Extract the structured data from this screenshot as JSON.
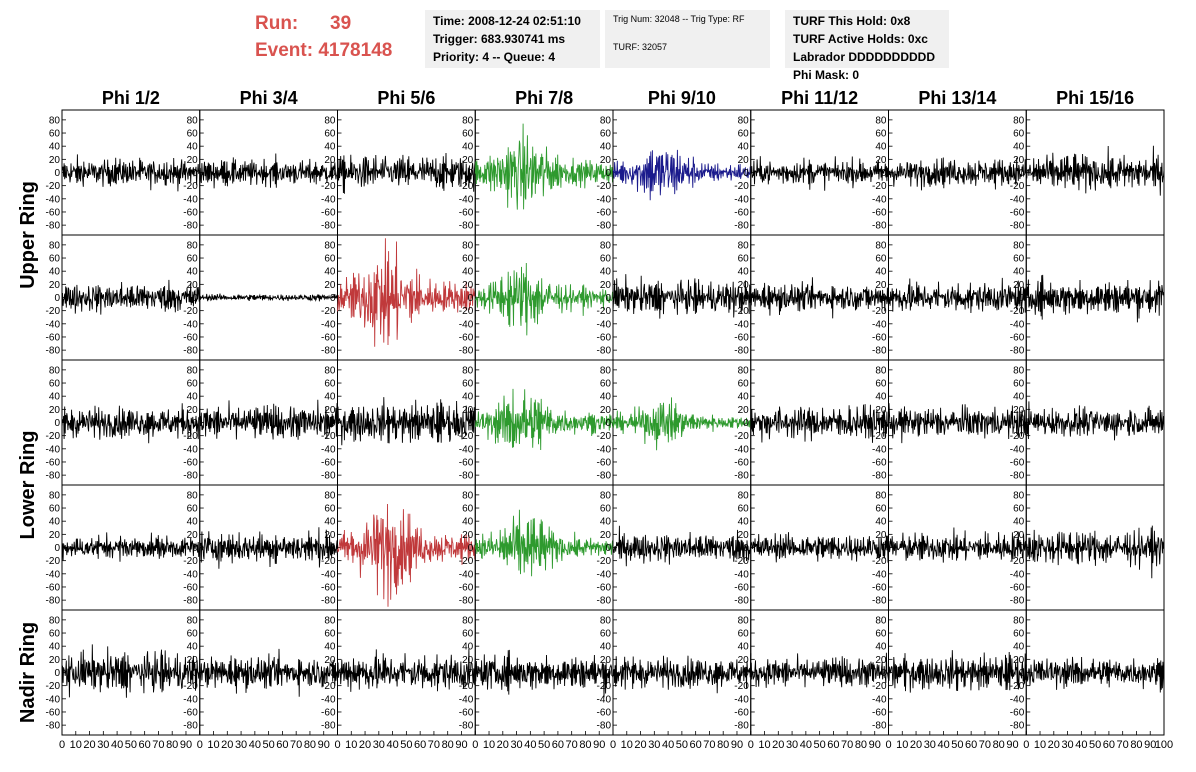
{
  "run": {
    "run_label": "Run:",
    "run_value": "39",
    "event_label": "Event:",
    "event_value": "4178148"
  },
  "info_time": {
    "line1": "Time: 2008-12-24 02:51:10",
    "line2": "Trigger: 683.930741 ms",
    "line3": "Priority: 4 -- Queue: 4"
  },
  "info_trig": {
    "line1": "Trig Num: 32048 -- Trig Type: RF",
    "line2": "TURF: 32057"
  },
  "info_turf": {
    "line1": "TURF This Hold: 0x8",
    "line2": "TURF Active Holds: 0xc",
    "line3": "Labrador DDDDDDDDDD",
    "line4": "Phi Mask: 0"
  },
  "colors": {
    "black": "#000000",
    "green": "#2e9a2e",
    "blue": "#1a1a8c",
    "red": "#c0393b"
  },
  "chart_data": {
    "type": "line",
    "columns": [
      "Phi 1/2",
      "Phi 3/4",
      "Phi 5/6",
      "Phi 7/8",
      "Phi 9/10",
      "Phi 11/12",
      "Phi 13/14",
      "Phi 15/16"
    ],
    "ring_labels": [
      {
        "label": "Upper Ring",
        "rows": [
          0,
          1
        ]
      },
      {
        "label": "Lower Ring",
        "rows": [
          2,
          3
        ]
      },
      {
        "label": "Nadir Ring",
        "rows": [
          4
        ]
      }
    ],
    "xlim": [
      0,
      100
    ],
    "ylim": [
      -95,
      95
    ],
    "yticks": [
      -80,
      -60,
      -40,
      -20,
      0,
      20,
      40,
      60,
      80
    ],
    "xticks": [
      0,
      10,
      20,
      30,
      40,
      50,
      60,
      70,
      80,
      90,
      100
    ],
    "panels": [
      [
        {
          "c": "black",
          "a": 12
        },
        {
          "c": "black",
          "a": 11
        },
        {
          "c": "black",
          "a": 15
        },
        {
          "c": "green",
          "a": 30,
          "burst": true
        },
        {
          "c": "blue",
          "a": 22,
          "burst": true
        },
        {
          "c": "black",
          "a": 11
        },
        {
          "c": "black",
          "a": 12
        },
        {
          "c": "black",
          "a": 16
        }
      ],
      [
        {
          "c": "black",
          "a": 13
        },
        {
          "c": "black",
          "a": 3
        },
        {
          "c": "red",
          "a": 38,
          "burst": true
        },
        {
          "c": "green",
          "a": 25,
          "burst": true
        },
        {
          "c": "black",
          "a": 15
        },
        {
          "c": "black",
          "a": 12
        },
        {
          "c": "black",
          "a": 14
        },
        {
          "c": "black",
          "a": 15
        }
      ],
      [
        {
          "c": "black",
          "a": 14
        },
        {
          "c": "black",
          "a": 15
        },
        {
          "c": "black",
          "a": 17
        },
        {
          "c": "green",
          "a": 25,
          "burst": true
        },
        {
          "c": "green",
          "a": 16,
          "burst": true
        },
        {
          "c": "black",
          "a": 15
        },
        {
          "c": "black",
          "a": 14
        },
        {
          "c": "black",
          "a": 13
        }
      ],
      [
        {
          "c": "black",
          "a": 10
        },
        {
          "c": "black",
          "a": 14
        },
        {
          "c": "red",
          "a": 35,
          "burst": true
        },
        {
          "c": "green",
          "a": 25,
          "burst": true
        },
        {
          "c": "black",
          "a": 13
        },
        {
          "c": "black",
          "a": 12
        },
        {
          "c": "black",
          "a": 13
        },
        {
          "c": "black",
          "a": 15
        }
      ],
      [
        {
          "c": "black",
          "a": 18
        },
        {
          "c": "black",
          "a": 14
        },
        {
          "c": "black",
          "a": 17
        },
        {
          "c": "black",
          "a": 15
        },
        {
          "c": "black",
          "a": 14
        },
        {
          "c": "black",
          "a": 13
        },
        {
          "c": "black",
          "a": 15
        },
        {
          "c": "black",
          "a": 13
        }
      ]
    ]
  }
}
